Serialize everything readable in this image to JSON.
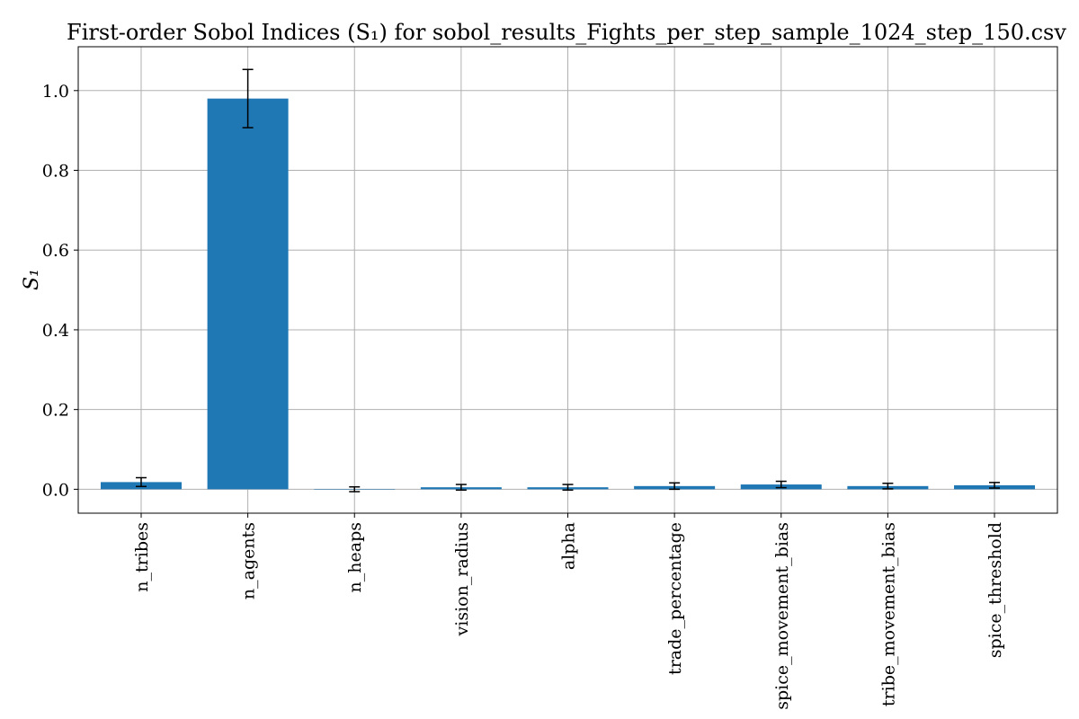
{
  "chart_data": {
    "type": "bar",
    "title": "First-order Sobol Indices (S₁) for sobol_results_Fights_per_step_sample_1024_step_150.csv",
    "xlabel": "",
    "ylabel": "S₁",
    "categories": [
      "n_tribes",
      "n_agents",
      "n_heaps",
      "vision_radius",
      "alpha",
      "trade_percentage",
      "spice_movement_bias",
      "tribe_movement_bias",
      "spice_threshold"
    ],
    "values": [
      0.018,
      0.98,
      0.0,
      0.005,
      0.005,
      0.008,
      0.012,
      0.008,
      0.01
    ],
    "errors": [
      0.011,
      0.073,
      0.006,
      0.007,
      0.007,
      0.008,
      0.008,
      0.007,
      0.007
    ],
    "ylim": [
      -0.06,
      1.11
    ],
    "yticks": [
      0.0,
      0.2,
      0.4,
      0.6,
      0.8,
      1.0
    ],
    "ytick_labels": [
      "0.0",
      "0.2",
      "0.4",
      "0.6",
      "0.8",
      "1.0"
    ],
    "grid": true,
    "bar_color": "#1f77b4",
    "error_color": "#000000",
    "grid_color": "#b0b0b0"
  }
}
